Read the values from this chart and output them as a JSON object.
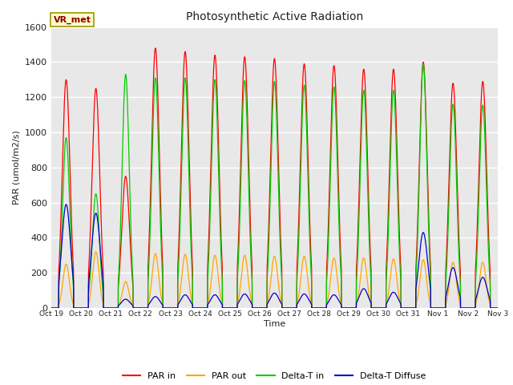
{
  "title": "Photosynthetic Active Radiation",
  "ylabel": "PAR (umol/m2/s)",
  "xlabel": "Time",
  "annotation": "VR_met",
  "ylim": [
    0,
    1600
  ],
  "plot_bg_color": "#e8e8e8",
  "fig_bg_color": "#ffffff",
  "colors": {
    "PAR_in": "#ff0000",
    "PAR_out": "#ffa500",
    "Delta_T_in": "#00cc00",
    "Delta_T_Diffuse": "#0000cd"
  },
  "x_tick_labels": [
    "Oct 19",
    "Oct 20",
    "Oct 21",
    "Oct 22",
    "Oct 23",
    "Oct 24",
    "Oct 25",
    "Oct 26",
    "Oct 27",
    "Oct 28",
    "Oct 29",
    "Oct 30",
    "Oct 31",
    "Nov 1",
    "Nov 2",
    "Nov 3"
  ],
  "legend_labels": [
    "PAR in",
    "PAR out",
    "Delta-T in",
    "Delta-T Diffuse"
  ],
  "par_in_peaks": [
    1300,
    1250,
    750,
    1480,
    1460,
    1440,
    1430,
    1420,
    1390,
    1380,
    1360,
    1360,
    1400,
    1280,
    1290,
    0
  ],
  "par_out_peaks": [
    250,
    320,
    150,
    310,
    305,
    300,
    300,
    295,
    295,
    285,
    285,
    280,
    275,
    260,
    260,
    0
  ],
  "delta_t_in_peaks": [
    970,
    650,
    1330,
    1310,
    1310,
    1300,
    1295,
    1290,
    1270,
    1260,
    1240,
    1240,
    1390,
    1160,
    1155,
    0
  ],
  "delta_t_diff_peaks": [
    590,
    540,
    50,
    65,
    75,
    75,
    80,
    85,
    80,
    75,
    110,
    90,
    430,
    230,
    175,
    0
  ]
}
